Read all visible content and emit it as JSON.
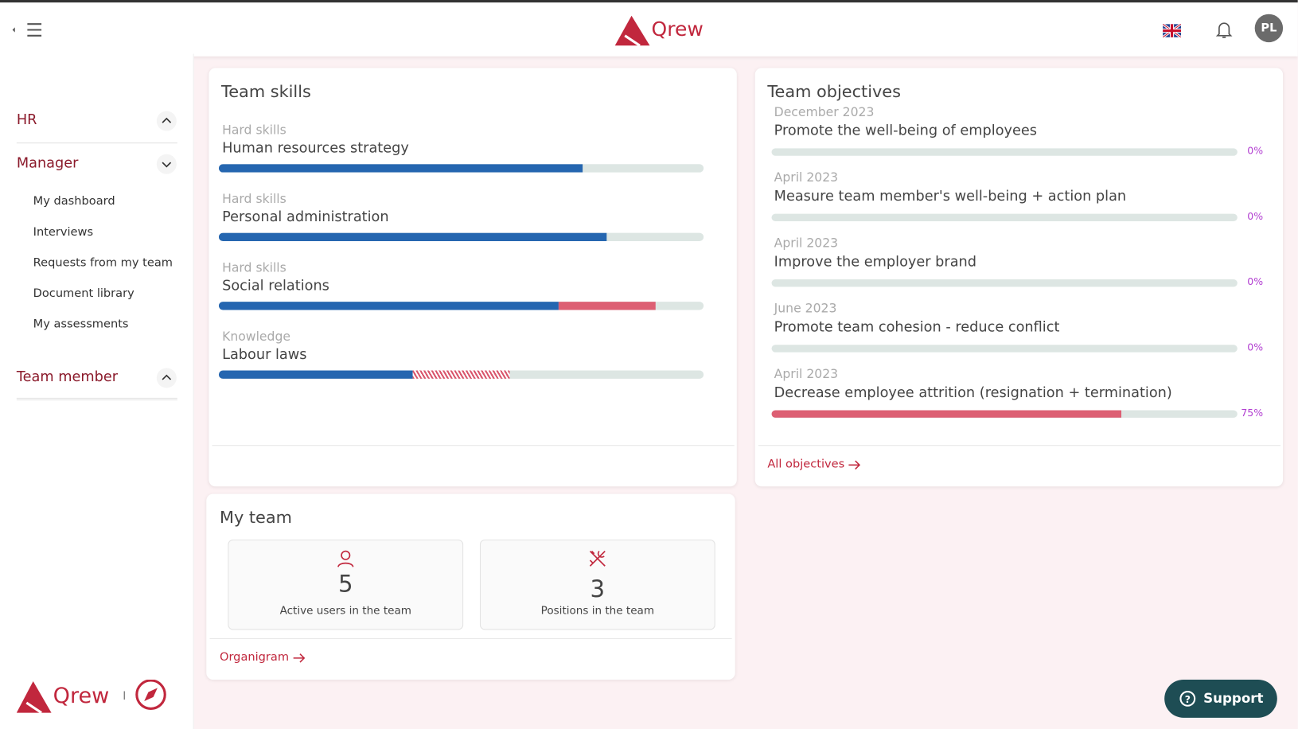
{
  "header": {
    "logo": "Qrew",
    "avatar": "PL"
  },
  "sidebar": {
    "sections": [
      {
        "label": "HR"
      },
      {
        "label": "Manager",
        "items": [
          "My dashboard",
          "Interviews",
          "Requests from my team",
          "Document library",
          "My assessments"
        ]
      },
      {
        "label": "Team member"
      }
    ],
    "footer_logo": "Qrew"
  },
  "team_skills": {
    "title": "Team skills",
    "level_color": "#2566b0",
    "skills": [
      {
        "category": "Hard skills",
        "name": "Human resources strategy",
        "level": 75
      },
      {
        "category": "Hard skills",
        "name": "Personal administration",
        "level": 80
      },
      {
        "category": "Hard skills",
        "name": "Social relations",
        "level": 70,
        "gap": 20,
        "gap_style": "solid"
      },
      {
        "category": "Knowledge",
        "name": "Labour laws",
        "level": 40,
        "gap": 20,
        "gap_style": "hatched"
      }
    ]
  },
  "team_objectives": {
    "title": "Team objectives",
    "objectives": [
      {
        "date": "December 2023",
        "name": "Promote the well-being of employees",
        "progress": 0,
        "progress_label": "0%"
      },
      {
        "date": "April 2023",
        "name": "Measure team member's well-being + action plan",
        "progress": 0,
        "progress_label": "0%"
      },
      {
        "date": "April 2023",
        "name": "Improve the employer brand",
        "progress": 0,
        "progress_label": "0%"
      },
      {
        "date": "June 2023",
        "name": "Promote team cohesion - reduce conflict",
        "progress": 0,
        "progress_label": "0%"
      },
      {
        "date": "April 2023",
        "name": "Decrease employee attrition (resignation + termination)",
        "progress": 75,
        "progress_label": "75%"
      }
    ],
    "link": "All objectives"
  },
  "my_team": {
    "title": "My team",
    "stats": [
      {
        "value": 5,
        "label": "Active users in the team"
      },
      {
        "value": 3,
        "label": "Positions in the team"
      }
    ],
    "link": "Organigram"
  },
  "support": "Support"
}
